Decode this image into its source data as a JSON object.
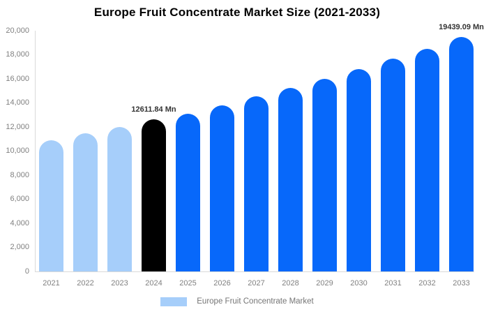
{
  "chart_data": {
    "type": "bar",
    "title": "Europe Fruit Concentrate Market Size (2021-2033)",
    "xlabel": "",
    "ylabel": "",
    "unit": "Mn",
    "categories": [
      "2021",
      "2022",
      "2023",
      "2024",
      "2025",
      "2026",
      "2027",
      "2028",
      "2029",
      "2030",
      "2031",
      "2032",
      "2033"
    ],
    "values": [
      10910,
      11450,
      12015,
      12611.84,
      13100,
      13800,
      14550,
      15250,
      16000,
      16800,
      17650,
      18500,
      19439.09
    ],
    "bar_roles": [
      "historical",
      "historical",
      "historical",
      "highlight",
      "forecast",
      "forecast",
      "forecast",
      "forecast",
      "forecast",
      "forecast",
      "forecast",
      "forecast",
      "forecast"
    ],
    "data_labels": [
      {
        "category": "2024",
        "text": "12611.84 Mn"
      },
      {
        "category": "2033",
        "text": "19439.09 Mn"
      }
    ],
    "ylim": [
      0,
      20000
    ],
    "y_ticks": [
      {
        "value": 0,
        "label": "0"
      },
      {
        "value": 2000,
        "label": "2,000"
      },
      {
        "value": 4000,
        "label": "4,000"
      },
      {
        "value": 6000,
        "label": "6,000"
      },
      {
        "value": 8000,
        "label": "8,000"
      },
      {
        "value": 10000,
        "label": "10,000"
      },
      {
        "value": 12000,
        "label": "12,000"
      },
      {
        "value": 14000,
        "label": "14,000"
      },
      {
        "value": 16000,
        "label": "16,000"
      },
      {
        "value": 18000,
        "label": "18,000"
      },
      {
        "value": 20000,
        "label": "20,000"
      }
    ],
    "grid": false,
    "legend": {
      "position": "bottom",
      "label": "Europe Fruit Concentrate Market",
      "swatch_color": "#a6cefa"
    },
    "colors": {
      "historical": "#a6cefa",
      "highlight": "#000000",
      "forecast": "#0768fa",
      "axis_line": "#d9d9d9",
      "tick_label": "#808080",
      "legend_text": "#757575",
      "data_label": "#333333",
      "title": "#000000"
    }
  }
}
